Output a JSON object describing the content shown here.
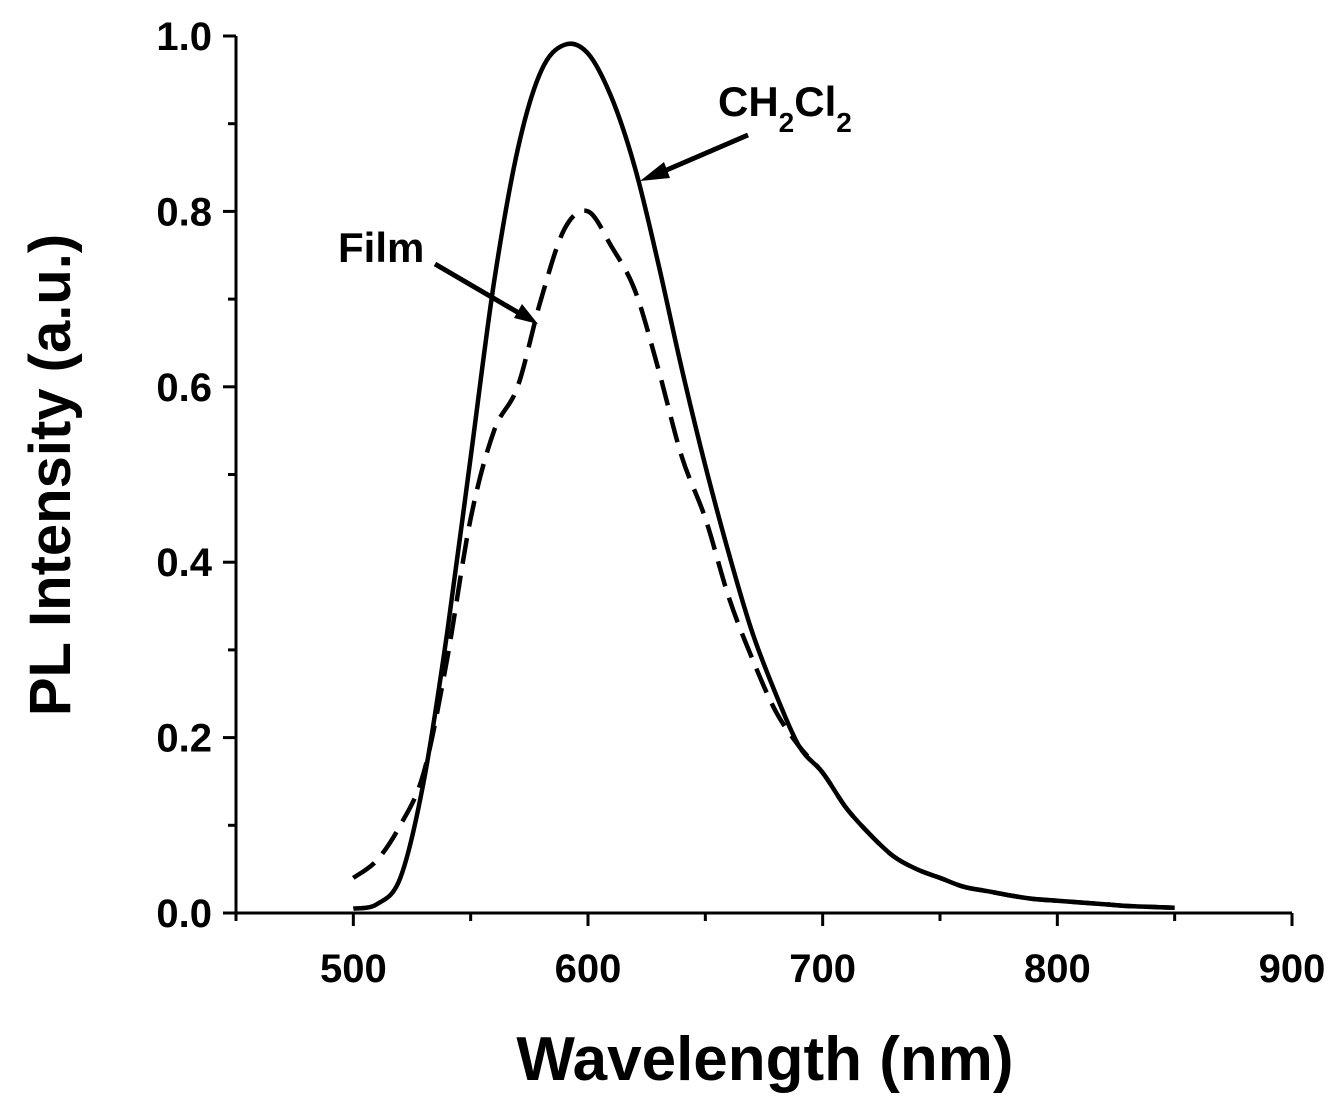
{
  "chart_data": {
    "type": "line",
    "title": "",
    "xlabel": "Wavelength (nm)",
    "ylabel": "PL Intensity (a.u.)",
    "xlim": [
      450,
      900
    ],
    "ylim": [
      0.0,
      1.0
    ],
    "x_ticks": [
      "500",
      "600",
      "700",
      "800",
      "900"
    ],
    "y_ticks": [
      "0.0",
      "0.2",
      "0.4",
      "0.6",
      "0.8",
      "1.0"
    ],
    "grid": false,
    "legend": "none",
    "series": [
      {
        "name": "CH2Cl2",
        "style": "solid",
        "x": [
          500,
          510,
          520,
          530,
          540,
          550,
          560,
          570,
          580,
          590,
          600,
          610,
          620,
          630,
          640,
          650,
          660,
          670,
          680,
          690,
          700,
          710,
          720,
          730,
          740,
          750,
          760,
          770,
          780,
          790,
          800,
          810,
          820,
          830,
          840,
          850
        ],
        "y": [
          0.005,
          0.01,
          0.04,
          0.15,
          0.32,
          0.52,
          0.72,
          0.87,
          0.96,
          0.99,
          0.98,
          0.93,
          0.85,
          0.74,
          0.62,
          0.51,
          0.41,
          0.32,
          0.25,
          0.19,
          0.16,
          0.12,
          0.09,
          0.065,
          0.05,
          0.04,
          0.03,
          0.025,
          0.02,
          0.016,
          0.014,
          0.012,
          0.01,
          0.008,
          0.007,
          0.006
        ]
      },
      {
        "name": "Film",
        "style": "dashed",
        "x": [
          500,
          510,
          520,
          530,
          540,
          550,
          560,
          570,
          580,
          590,
          600,
          610,
          620,
          630,
          640,
          650,
          660,
          670,
          680,
          690,
          700,
          710,
          720,
          730,
          740,
          750,
          760,
          770,
          780,
          790,
          800,
          810,
          820,
          830,
          840,
          850
        ],
        "y": [
          0.04,
          0.06,
          0.1,
          0.16,
          0.29,
          0.45,
          0.55,
          0.6,
          0.7,
          0.78,
          0.8,
          0.76,
          0.71,
          0.62,
          0.52,
          0.45,
          0.36,
          0.29,
          0.23,
          0.19,
          0.16,
          0.12,
          0.09,
          0.065,
          0.05,
          0.04,
          0.03,
          0.025,
          0.02,
          0.016,
          0.014,
          0.012,
          0.01,
          0.008,
          0.007,
          0.006
        ]
      }
    ],
    "annotations": {
      "ch2cl2": {
        "main": "CH",
        "sub1": "2",
        "mid": "Cl",
        "sub2": "2"
      },
      "film": "Film"
    }
  }
}
